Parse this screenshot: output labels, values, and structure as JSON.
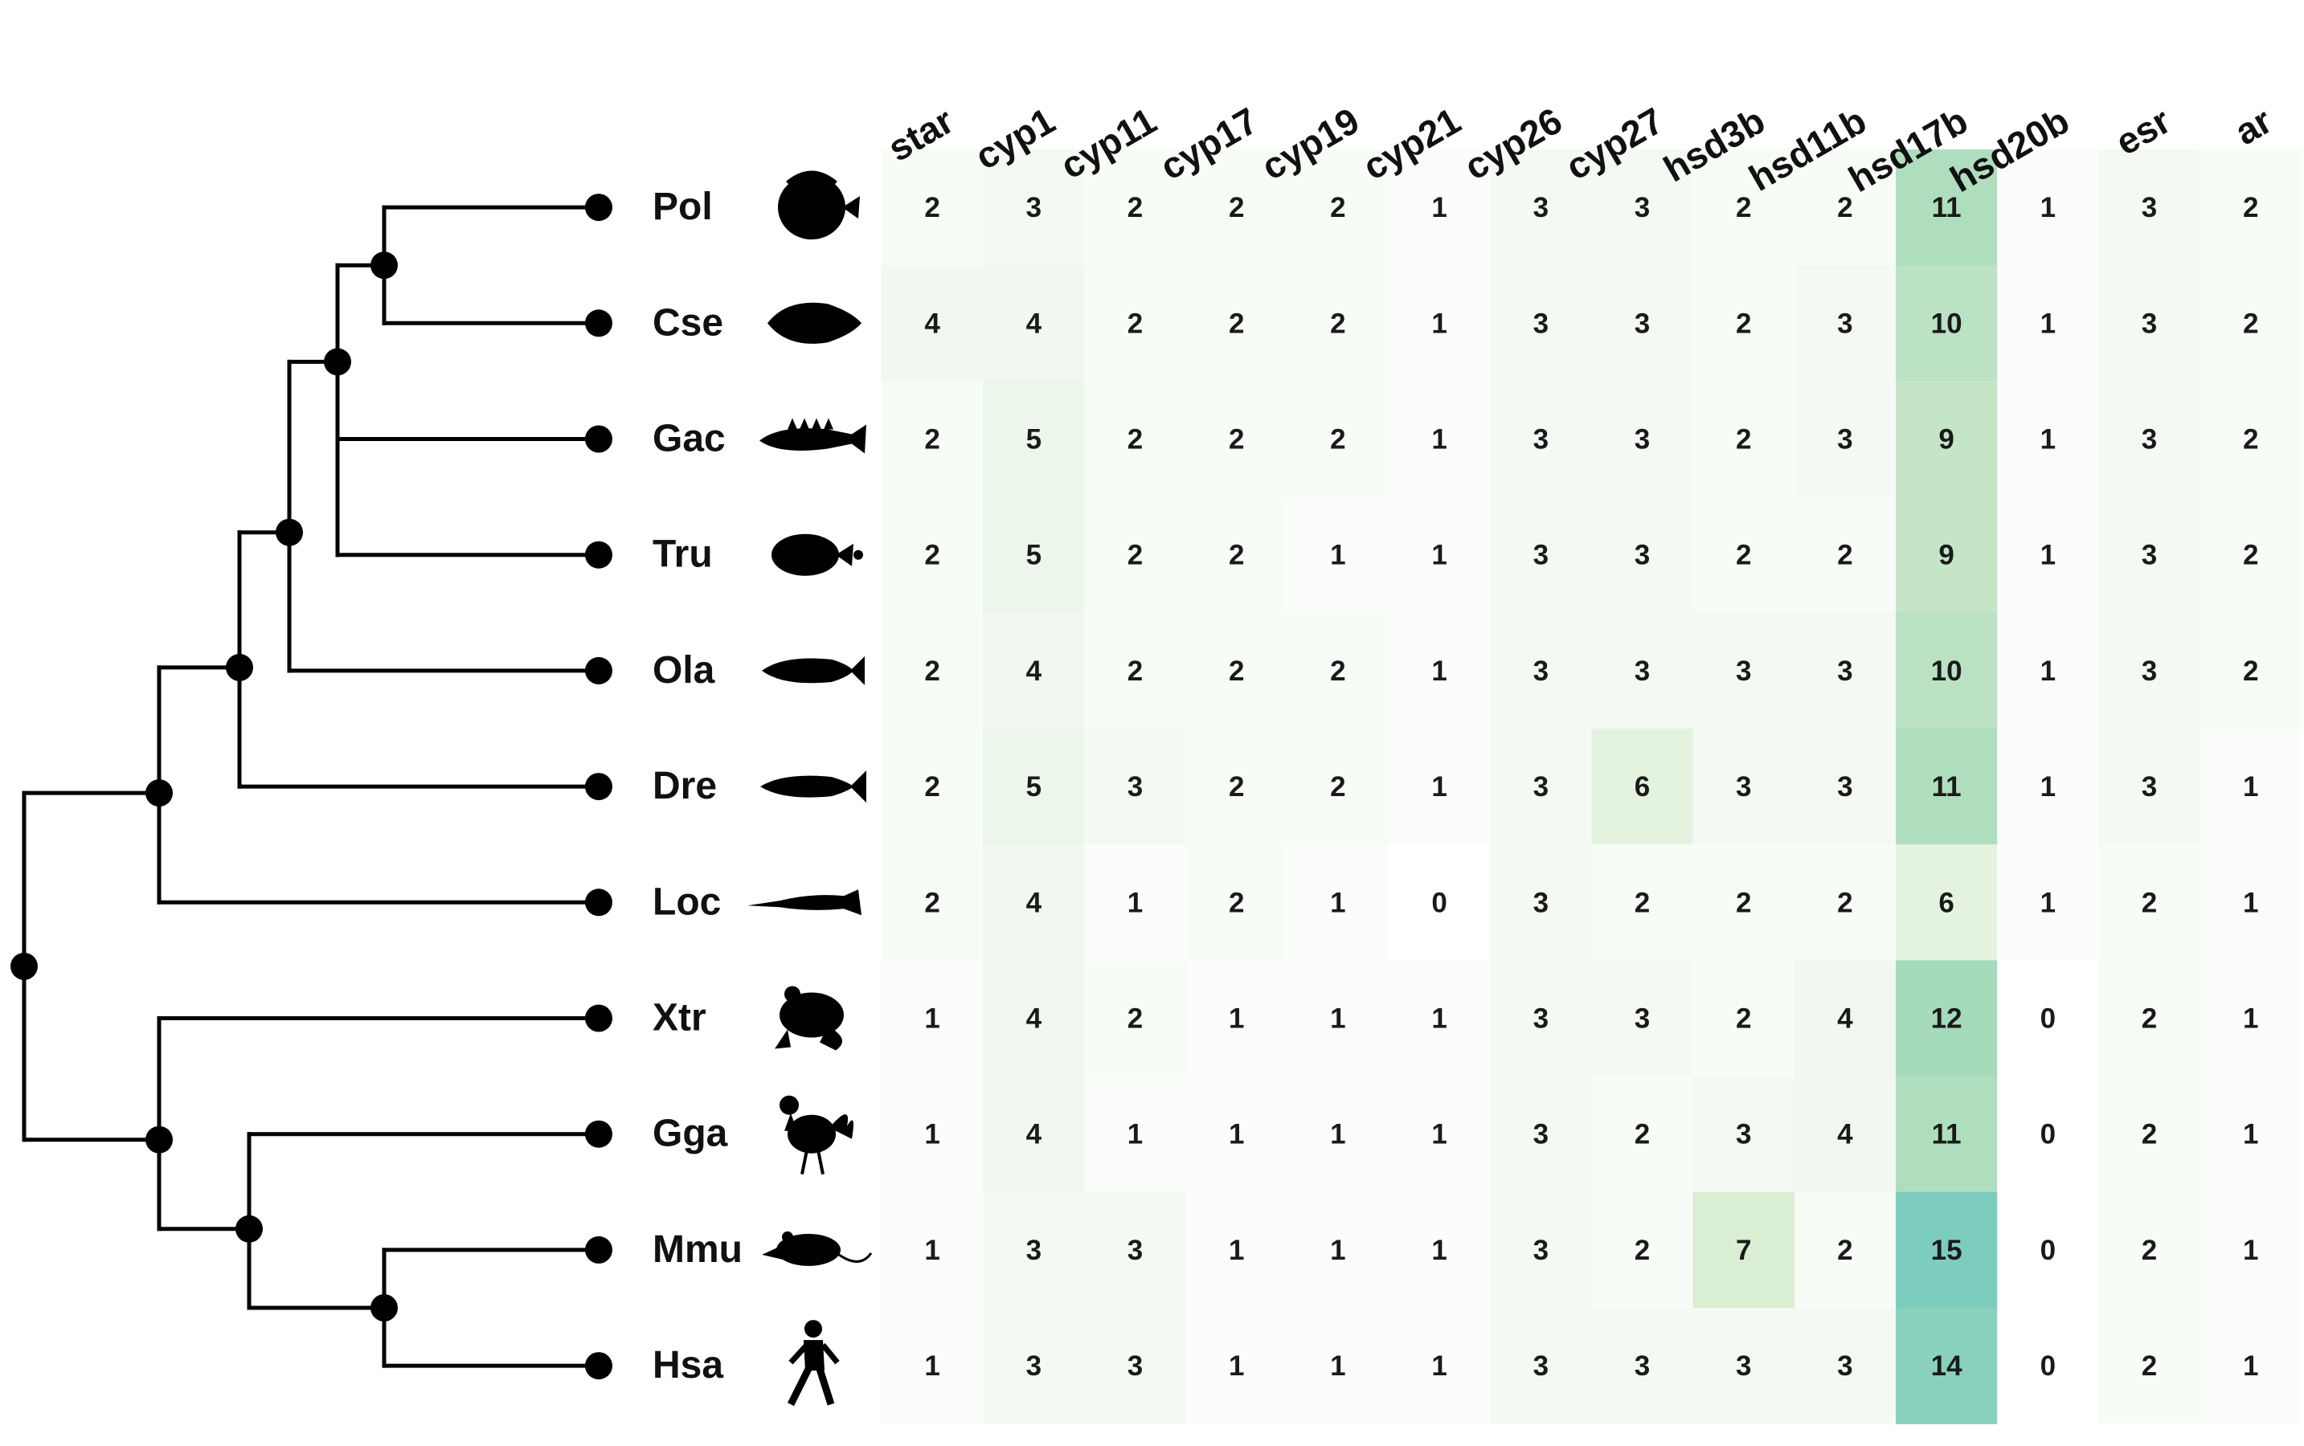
{
  "chart_data": {
    "type": "heatmap",
    "columns": [
      "star",
      "cyp1",
      "cyp11",
      "cyp17",
      "cyp19",
      "cyp21",
      "cyp26",
      "cyp27",
      "hsd3b",
      "hsd11b",
      "hsd17b",
      "hsd20b",
      "esr",
      "ar"
    ],
    "rows": [
      "Pol",
      "Cse",
      "Gac",
      "Tru",
      "Ola",
      "Dre",
      "Loc",
      "Xtr",
      "Gga",
      "Mmu",
      "Hsa"
    ],
    "values": [
      [
        2,
        3,
        2,
        2,
        2,
        1,
        3,
        3,
        2,
        2,
        11,
        1,
        3,
        2
      ],
      [
        4,
        4,
        2,
        2,
        2,
        1,
        3,
        3,
        2,
        3,
        10,
        1,
        3,
        2
      ],
      [
        2,
        5,
        2,
        2,
        2,
        1,
        3,
        3,
        2,
        3,
        9,
        1,
        3,
        2
      ],
      [
        2,
        5,
        2,
        2,
        1,
        1,
        3,
        3,
        2,
        2,
        9,
        1,
        3,
        2
      ],
      [
        2,
        4,
        2,
        2,
        2,
        1,
        3,
        3,
        3,
        3,
        10,
        1,
        3,
        2
      ],
      [
        2,
        5,
        3,
        2,
        2,
        1,
        3,
        6,
        3,
        3,
        11,
        1,
        3,
        1
      ],
      [
        2,
        4,
        1,
        2,
        1,
        0,
        3,
        2,
        2,
        2,
        6,
        1,
        2,
        1
      ],
      [
        1,
        4,
        2,
        1,
        1,
        1,
        3,
        3,
        2,
        4,
        12,
        0,
        2,
        1
      ],
      [
        1,
        4,
        1,
        1,
        1,
        1,
        3,
        2,
        3,
        4,
        11,
        0,
        2,
        1
      ],
      [
        1,
        3,
        3,
        1,
        1,
        1,
        3,
        2,
        7,
        2,
        15,
        0,
        2,
        1
      ],
      [
        1,
        3,
        3,
        1,
        1,
        1,
        3,
        3,
        3,
        3,
        14,
        0,
        2,
        1
      ]
    ],
    "row_icons": [
      "flatfish-silhouette-icon",
      "fish-silhouette-icon",
      "stickleback-silhouette-icon",
      "pufferfish-silhouette-icon",
      "medaka-silhouette-icon",
      "zebrafish-silhouette-icon",
      "gar-silhouette-icon",
      "frog-silhouette-icon",
      "rooster-silhouette-icon",
      "mouse-silhouette-icon",
      "human-walking-silhouette-icon"
    ],
    "tree": "(((((((Pol,Cse),(Gac,Tru)),Ola),Dre),Loc)),(Xtr,(Gga,(Mmu,Hsa))))",
    "colors": {
      "low": "#ffffff",
      "high": "#7fcfbe",
      "mid": "#d9efd4",
      "text": "#1a1a1a",
      "tree": "#000000"
    },
    "legend": "none",
    "grid": false
  }
}
